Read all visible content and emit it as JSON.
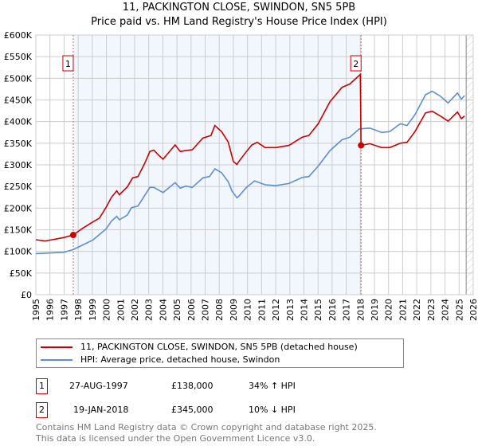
{
  "chart_data": {
    "type": "line",
    "title": "11, PACKINGTON CLOSE, SWINDON, SN5 5PB",
    "subtitle": "Price paid vs. HM Land Registry's House Price Index (HPI)",
    "xlim": [
      1995,
      2026
    ],
    "ylim": [
      0,
      600000
    ],
    "x_ticks": [
      "1995",
      "1996",
      "1997",
      "1998",
      "1999",
      "2000",
      "2001",
      "2002",
      "2003",
      "2004",
      "2005",
      "2006",
      "2007",
      "2008",
      "2009",
      "2010",
      "2011",
      "2012",
      "2013",
      "2014",
      "2015",
      "2016",
      "2017",
      "2018",
      "2019",
      "2020",
      "2021",
      "2022",
      "2023",
      "2024",
      "2025",
      "2026"
    ],
    "y_ticks": [
      {
        "v": 0,
        "label": "£0"
      },
      {
        "v": 50000,
        "label": "£50K"
      },
      {
        "v": 100000,
        "label": "£100K"
      },
      {
        "v": 150000,
        "label": "£150K"
      },
      {
        "v": 200000,
        "label": "£200K"
      },
      {
        "v": 250000,
        "label": "£250K"
      },
      {
        "v": 300000,
        "label": "£300K"
      },
      {
        "v": 350000,
        "label": "£350K"
      },
      {
        "v": 400000,
        "label": "£400K"
      },
      {
        "v": 450000,
        "label": "£450K"
      },
      {
        "v": 500000,
        "label": "£500K"
      },
      {
        "v": 550000,
        "label": "£550K"
      },
      {
        "v": 600000,
        "label": "£600K"
      }
    ],
    "grid": true,
    "shaded_range": [
      1997.65,
      2018.05
    ],
    "forecast_hatch_from": 2025.5,
    "series": [
      {
        "name": "11, PACKINGTON CLOSE, SWINDON, SN5 5PB (detached house)",
        "color": "#cc0000",
        "x": [
          1995.0,
          1995.66,
          1996.97,
          1997.65,
          1998.29,
          1999.04,
          1999.51,
          1999.98,
          2000.36,
          2000.73,
          2000.92,
          2001.48,
          2001.86,
          2002.24,
          2002.71,
          2003.08,
          2003.36,
          2003.74,
          2004.02,
          2004.87,
          2005.24,
          2005.62,
          2006.09,
          2006.84,
          2007.41,
          2007.69,
          2008.16,
          2008.63,
          2009.0,
          2009.25,
          2009.37,
          2009.93,
          2010.31,
          2010.69,
          2011.25,
          2012.0,
          2012.94,
          2013.88,
          2014.35,
          2015.01,
          2015.85,
          2016.7,
          2017.26,
          2018.0,
          2018.05,
          2018.67,
          2019.52,
          2020.08,
          2020.84,
          2021.31,
          2021.87,
          2022.62,
          2023.09,
          2023.66,
          2024.22,
          2024.88,
          2025.16,
          2025.39
        ],
        "y": [
          127000,
          124000,
          132000,
          138000,
          153000,
          168000,
          177000,
          202000,
          225000,
          240000,
          231000,
          249000,
          270000,
          273000,
          303000,
          331000,
          334000,
          321000,
          313000,
          346000,
          331000,
          333000,
          335000,
          362000,
          368000,
          391000,
          377000,
          353000,
          308000,
          301000,
          307000,
          331000,
          346000,
          352000,
          340000,
          340000,
          345000,
          364000,
          368000,
          395000,
          446000,
          479000,
          487000,
          509000,
          345000,
          349000,
          340000,
          340000,
          350000,
          352000,
          377000,
          420000,
          424000,
          413000,
          401000,
          422000,
          407000,
          413000
        ]
      },
      {
        "name": "HPI: Average price, detached house, Swindon",
        "color": "#5b8fd0",
        "x": [
          1995.0,
          1996.97,
          1997.63,
          1999.04,
          1999.98,
          2000.36,
          2000.73,
          2000.92,
          2001.48,
          2001.77,
          2002.24,
          2003.08,
          2003.36,
          2004.02,
          2004.87,
          2005.24,
          2005.62,
          2006.09,
          2006.84,
          2007.31,
          2007.69,
          2008.16,
          2008.63,
          2008.91,
          2009.25,
          2009.37,
          2009.93,
          2010.5,
          2011.25,
          2012.0,
          2012.94,
          2013.88,
          2014.35,
          2015.01,
          2015.85,
          2016.7,
          2017.26,
          2017.92,
          2018.67,
          2019.52,
          2020.08,
          2020.84,
          2021.31,
          2021.87,
          2022.62,
          2023.09,
          2023.66,
          2024.22,
          2024.88,
          2025.16,
          2025.39
        ],
        "y": [
          95000,
          98000,
          104000,
          126000,
          152000,
          170000,
          181000,
          173000,
          184000,
          201000,
          205000,
          248000,
          248000,
          236000,
          259000,
          246000,
          251000,
          248000,
          270000,
          273000,
          291000,
          282000,
          261000,
          239000,
          224000,
          227000,
          248000,
          263000,
          254000,
          252000,
          257000,
          271000,
          273000,
          297000,
          333000,
          358000,
          364000,
          383000,
          385000,
          375000,
          377000,
          395000,
          391000,
          416000,
          462000,
          470000,
          459000,
          443000,
          466000,
          452000,
          460000
        ]
      }
    ],
    "sales": [
      {
        "id": "1",
        "x": 1997.65,
        "y": 138000
      },
      {
        "id": "2",
        "x": 2018.05,
        "y": 345000
      }
    ],
    "legend_position": "bottom"
  },
  "transactions": [
    {
      "id": "1",
      "date": "27-AUG-1997",
      "price": "£138,000",
      "delta": "34% ↑ HPI"
    },
    {
      "id": "2",
      "date": "19-JAN-2018",
      "price": "£345,000",
      "delta": "10% ↓ HPI"
    }
  ],
  "footer": {
    "line1": "Contains HM Land Registry data © Crown copyright and database right 2025.",
    "line2": "This data is licensed under the Open Government Licence v3.0."
  }
}
